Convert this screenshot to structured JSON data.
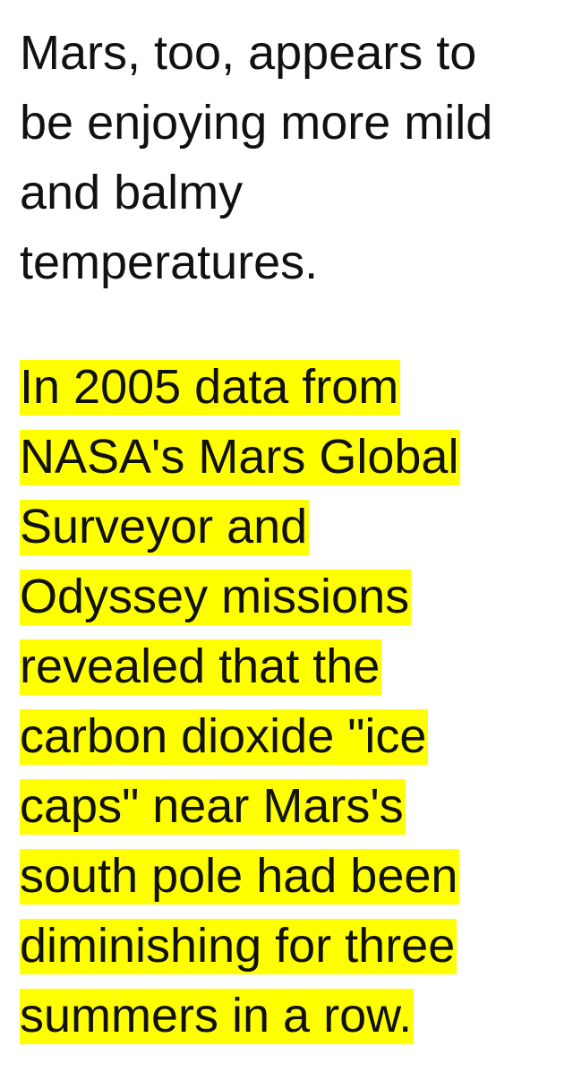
{
  "article": {
    "paragraph_1": {
      "lines": [
        "Mars, too, appears to",
        "be enjoying more mild",
        "and balmy",
        "temperatures."
      ]
    },
    "paragraph_2": {
      "highlight_color": "#ffff00",
      "lines": [
        "In 2005 data from",
        "NASA's Mars Global",
        "Surveyor and",
        "Odyssey missions",
        "revealed that the",
        "carbon dioxide \"ice",
        "caps\" near Mars's",
        "south pole had been",
        "diminishing for three",
        "summers in a row."
      ]
    }
  }
}
